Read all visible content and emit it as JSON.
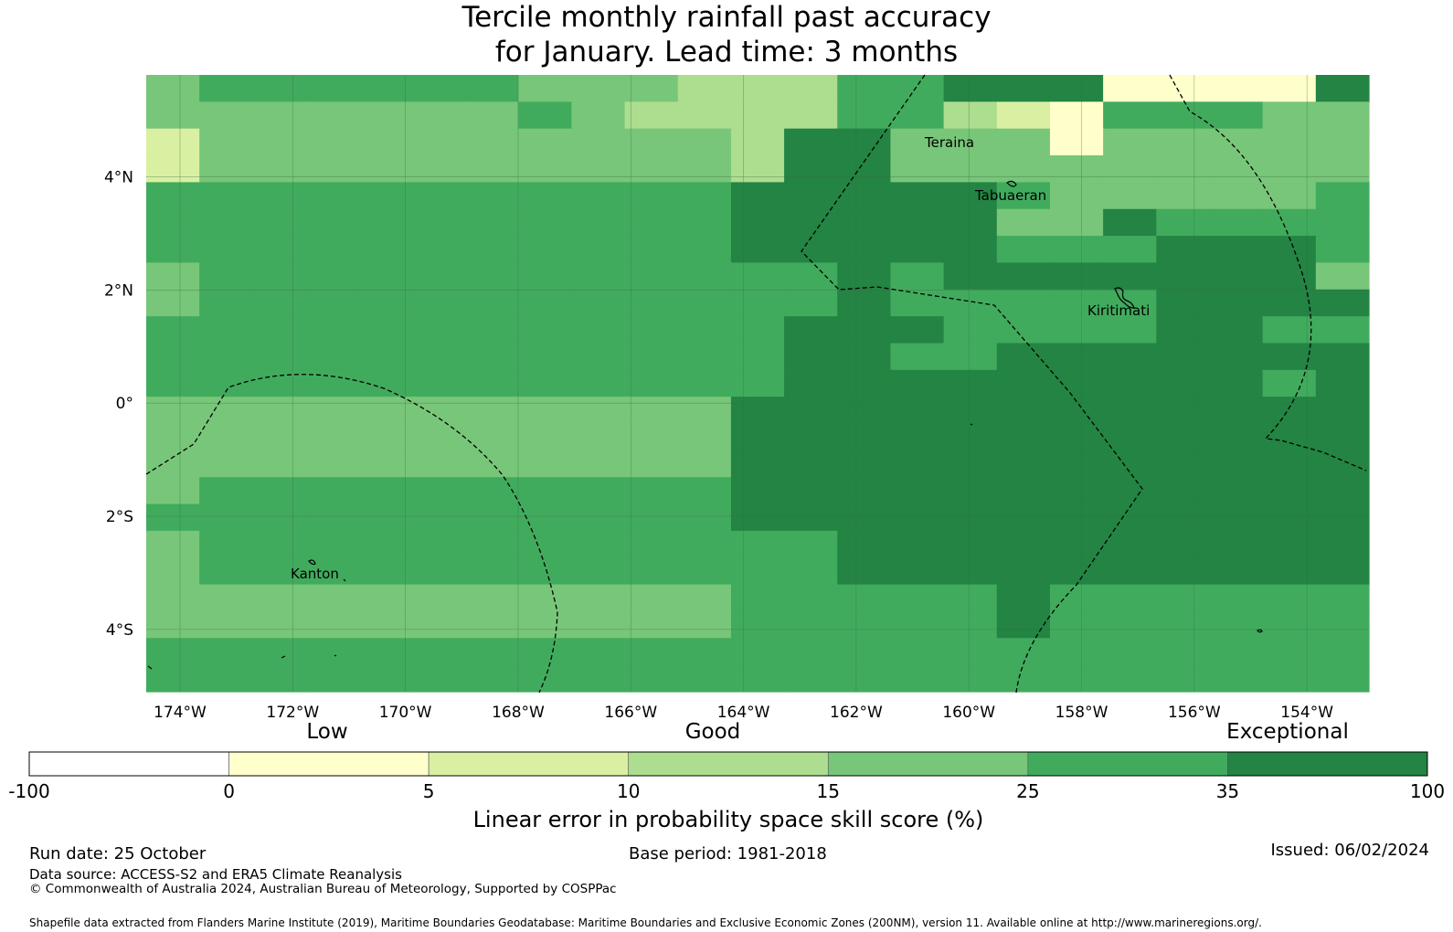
{
  "title": {
    "line1": "Tercile monthly rainfall past accuracy",
    "line2": "for January. Lead time: 3 months"
  },
  "map": {
    "lon_labels": [
      "174°W",
      "172°W",
      "170°W",
      "168°W",
      "166°W",
      "164°W",
      "162°W",
      "160°W",
      "158°W",
      "156°W",
      "154°W"
    ],
    "lat_labels": [
      "4°N",
      "2°N",
      "0°",
      "2°S",
      "4°S"
    ],
    "places": [
      {
        "id": "teraina",
        "name": "Teraina"
      },
      {
        "id": "tabuaeran",
        "name": "Tabuaeran"
      },
      {
        "id": "kiritimati",
        "name": "Kiritimati"
      },
      {
        "id": "kanton",
        "name": "Kanton"
      }
    ]
  },
  "legend": {
    "words": [
      "Low",
      "Good",
      "Exceptional"
    ],
    "ticks": [
      "-100",
      "0",
      "5",
      "10",
      "15",
      "25",
      "35",
      "100"
    ],
    "colors": [
      "#ffffff",
      "#ffffcc",
      "#d9f0a3",
      "#addd8e",
      "#78c679",
      "#41ab5d",
      "#238443"
    ],
    "title": "Linear error in probability space skill score (%)"
  },
  "footer": {
    "run_date": "Run date: 25 October",
    "base_period": "Base period: 1981-2018",
    "issued": "Issued: 06/02/2024",
    "data_source": "Data source: ACCESS-S2 and ERA5 Climate Reanalysis",
    "copyright": "© Commonwealth of Australia 2024, Australian Bureau of Meteorology, Supported by COSPPac",
    "shapefile": "Shapefile data extracted from Flanders Marine Institute (2019), Maritime Boundaries Geodatabase: Maritime Boundaries and Exclusive Economic Zones (200NM), version 11. Available online at http://www.marineregions.org/."
  },
  "chart_data": {
    "type": "heatmap",
    "title": "Tercile monthly rainfall past accuracy for January. Lead time: 3 months",
    "xlabel": "",
    "ylabel": "",
    "x_range_deg": [
      -174.6,
      -152.9
    ],
    "y_range_deg": [
      -5.1,
      5.8
    ],
    "color_levels": [
      -100,
      0,
      5,
      10,
      15,
      25,
      35,
      100
    ],
    "grid": [
      "45555554443335566611116",
      "44444445433335532155544",
      "24444444444366444144444",
      "24444444444366444444444",
      "55555555555666665444445",
      "55555555555666664465555",
      "55555555555666665556665",
      "45555555555556566666664",
      "45555555555556555556666",
      "55555555555566655556655",
      "55555555555566556666666",
      "55555555555566666666656",
      "44444444444666666666666",
      "44444444444666666666666",
      "44444444444666666666666",
      "45555555555666666666666",
      "55555555555666666666666",
      "45555555555556666666666",
      "45555555555556666666666",
      "44444444444555556555555",
      "44444444444555556555555",
      "55555555555555555555555",
      "55555555555555555555555"
    ]
  }
}
